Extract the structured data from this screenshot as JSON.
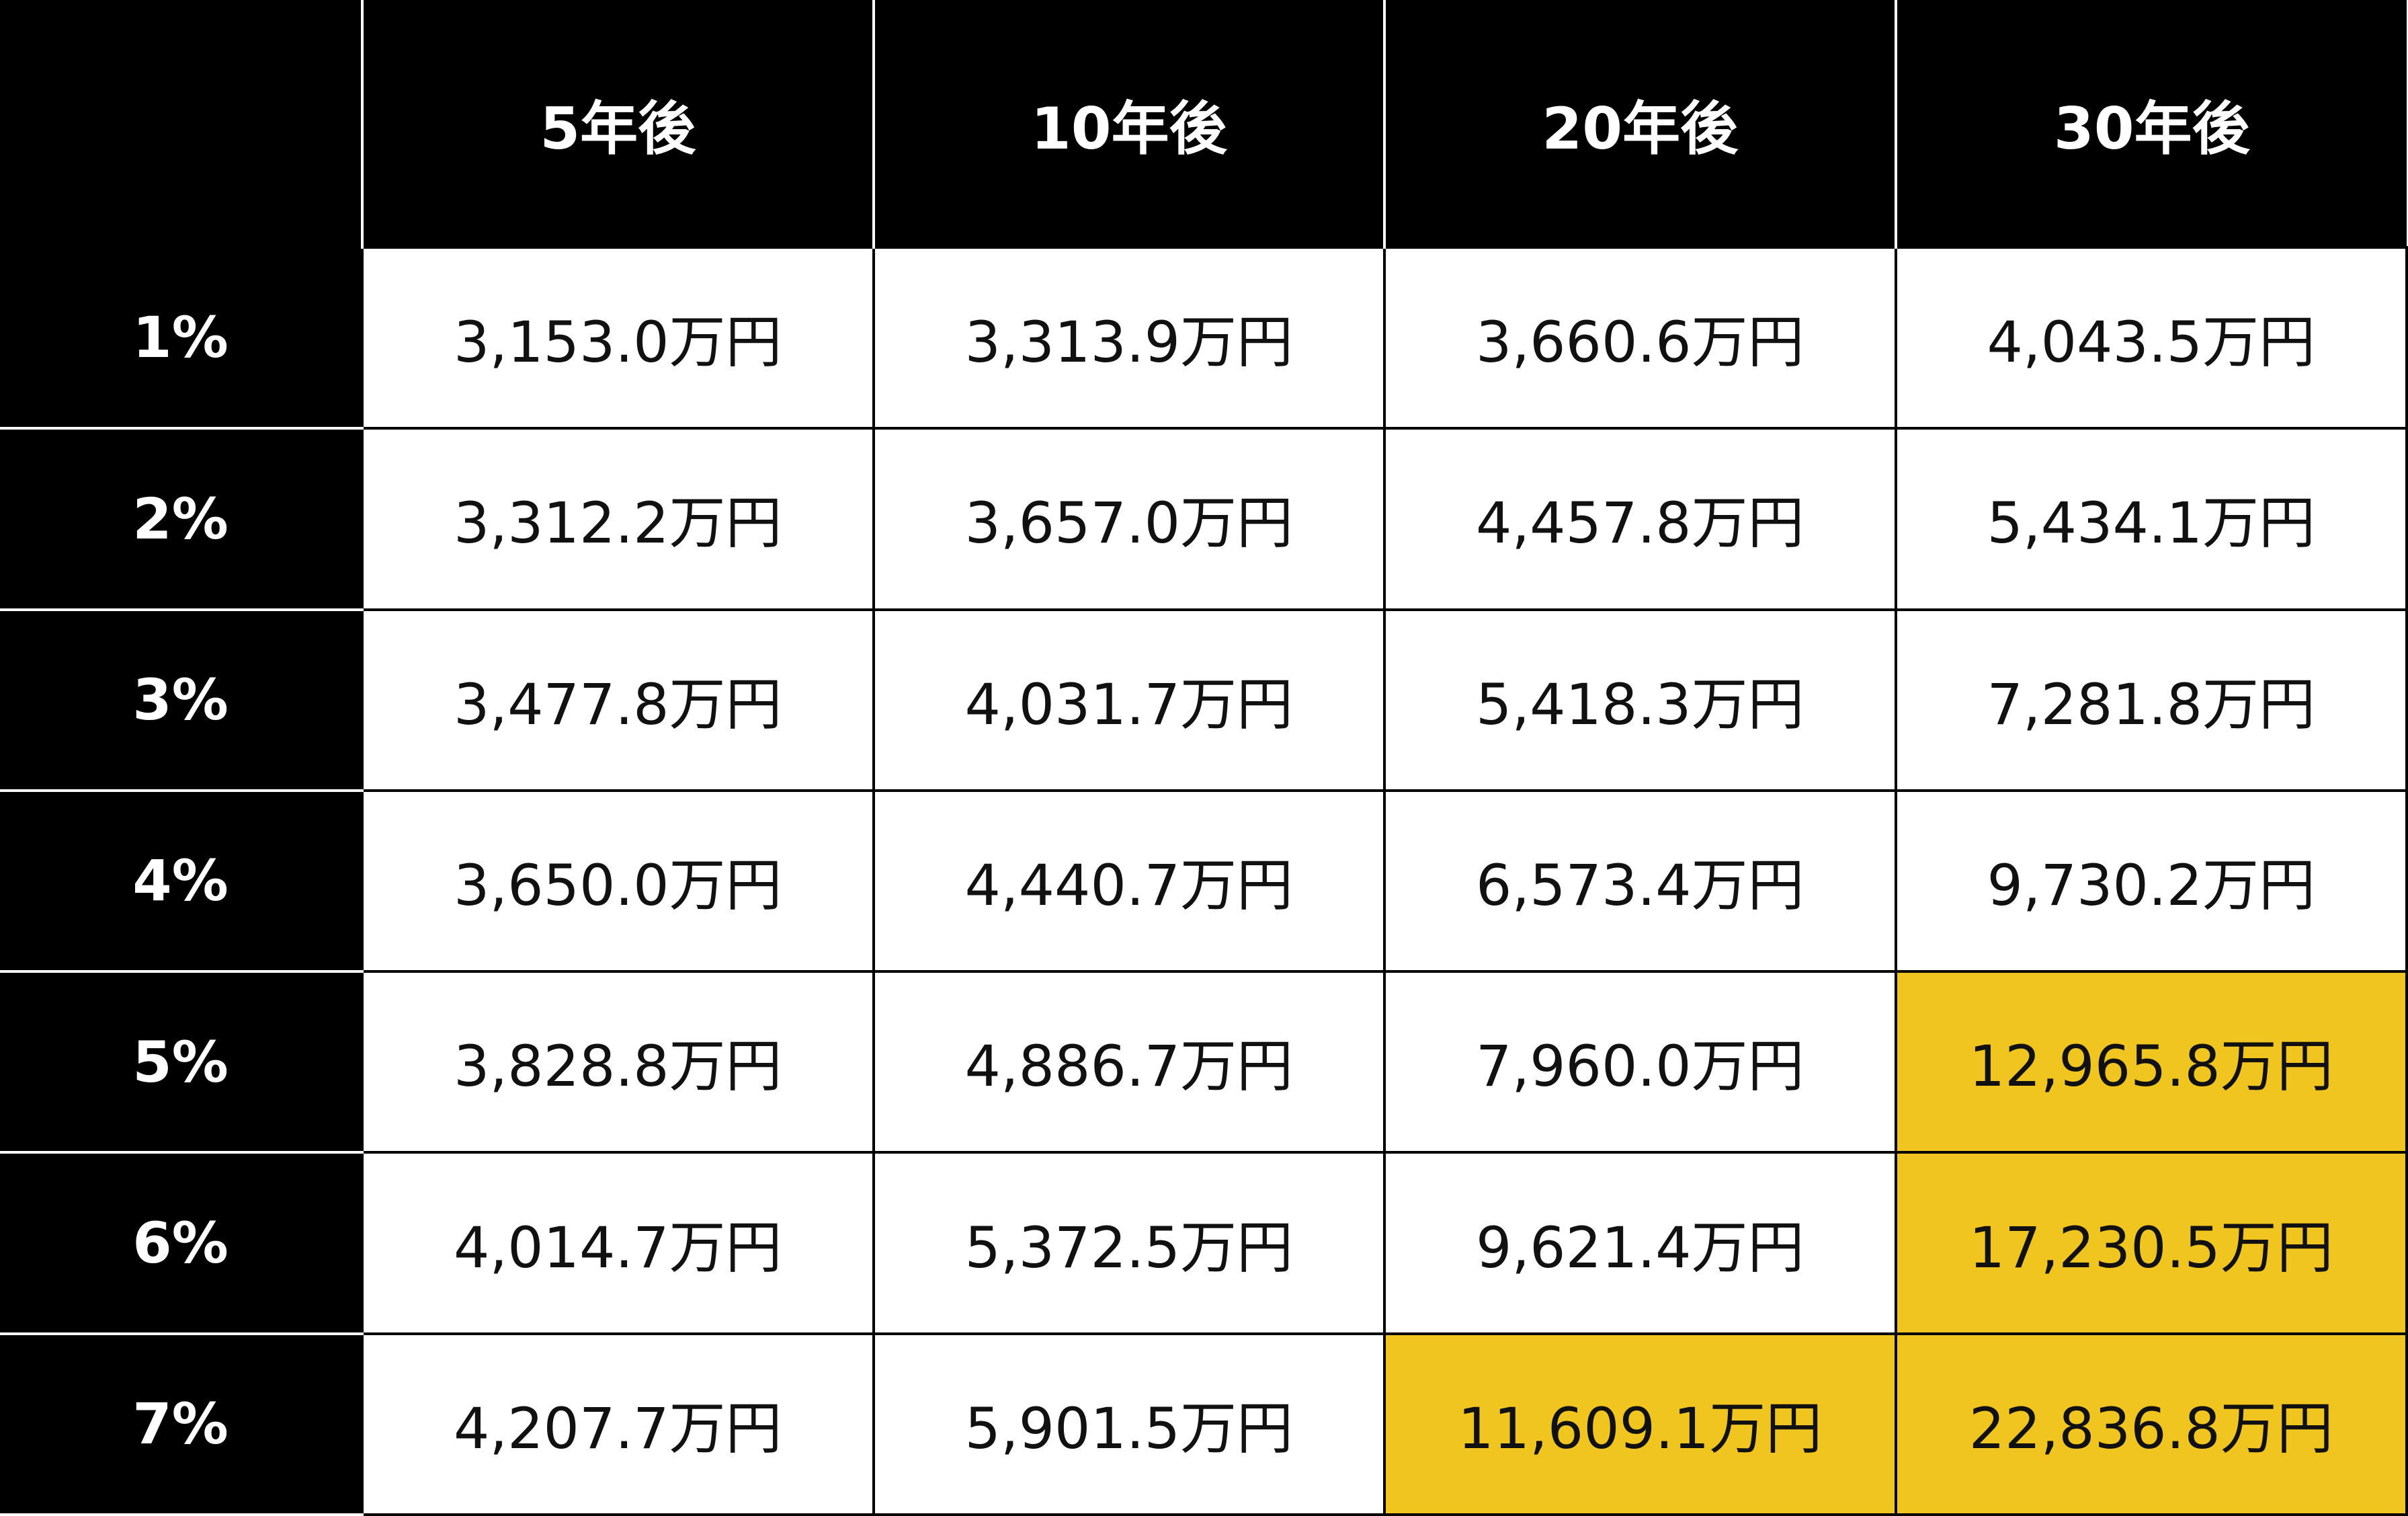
{
  "table": {
    "header": [
      "5年後",
      "10年後",
      "20年後",
      "30年後"
    ],
    "rows": [
      {
        "label": "1%",
        "cells": [
          "3,153.0万円",
          "3,313.9万円",
          "3,660.6万円",
          "4,043.5万円"
        ]
      },
      {
        "label": "2%",
        "cells": [
          "3,312.2万円",
          "3,657.0万円",
          "4,457.8万円",
          "5,434.1万円"
        ]
      },
      {
        "label": "3%",
        "cells": [
          "3,477.8万円",
          "4,031.7万円",
          "5,418.3万円",
          "7,281.8万円"
        ]
      },
      {
        "label": "4%",
        "cells": [
          "3,650.0万円",
          "4,440.7万円",
          "6,573.4万円",
          "9,730.2万円"
        ]
      },
      {
        "label": "5%",
        "cells": [
          "3,828.8万円",
          "4,886.7万円",
          "7,960.0万円",
          "12,965.8万円"
        ]
      },
      {
        "label": "6%",
        "cells": [
          "4,014.7万円",
          "5,372.5万円",
          "9,621.4万円",
          "17,230.5万円"
        ]
      },
      {
        "label": "7%",
        "cells": [
          "4,207.7万円",
          "5,901.5万円",
          "11,609.1万円",
          "22,836.8万円"
        ]
      }
    ],
    "highlight_color": "#f0c520",
    "highlighted_cells": [
      [
        4,
        3
      ],
      [
        5,
        3
      ],
      [
        6,
        2
      ],
      [
        6,
        3
      ]
    ]
  }
}
